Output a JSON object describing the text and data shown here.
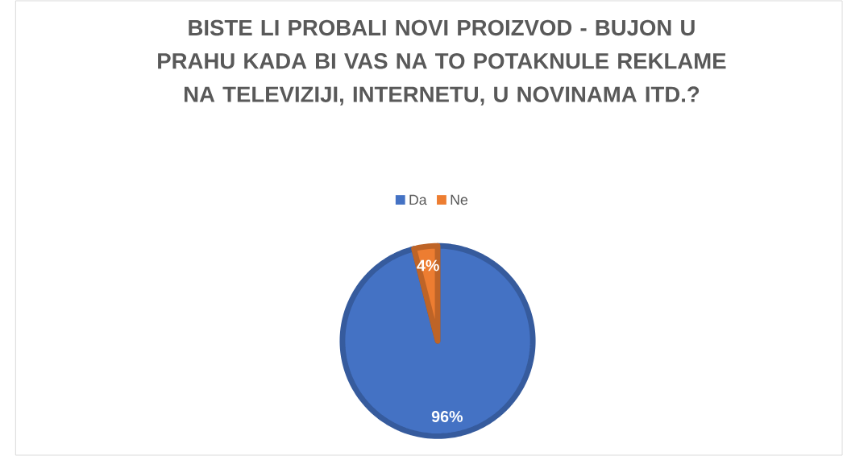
{
  "chart_data": {
    "type": "pie",
    "title": "BISTE LI PROBALI NOVI PROIZVOD - BUJON U PRAHU KADA BI VAS NA TO POTAKNULE REKLAME NA TELEVIZIJI, INTERNETU, U NOVINAMA ITD.?",
    "categories": [
      "Da",
      "Ne"
    ],
    "values": [
      96,
      4
    ],
    "colors": [
      "#4472c4",
      "#ed7d31"
    ],
    "value_labels": [
      "96%",
      "4%"
    ],
    "legend": "top"
  }
}
